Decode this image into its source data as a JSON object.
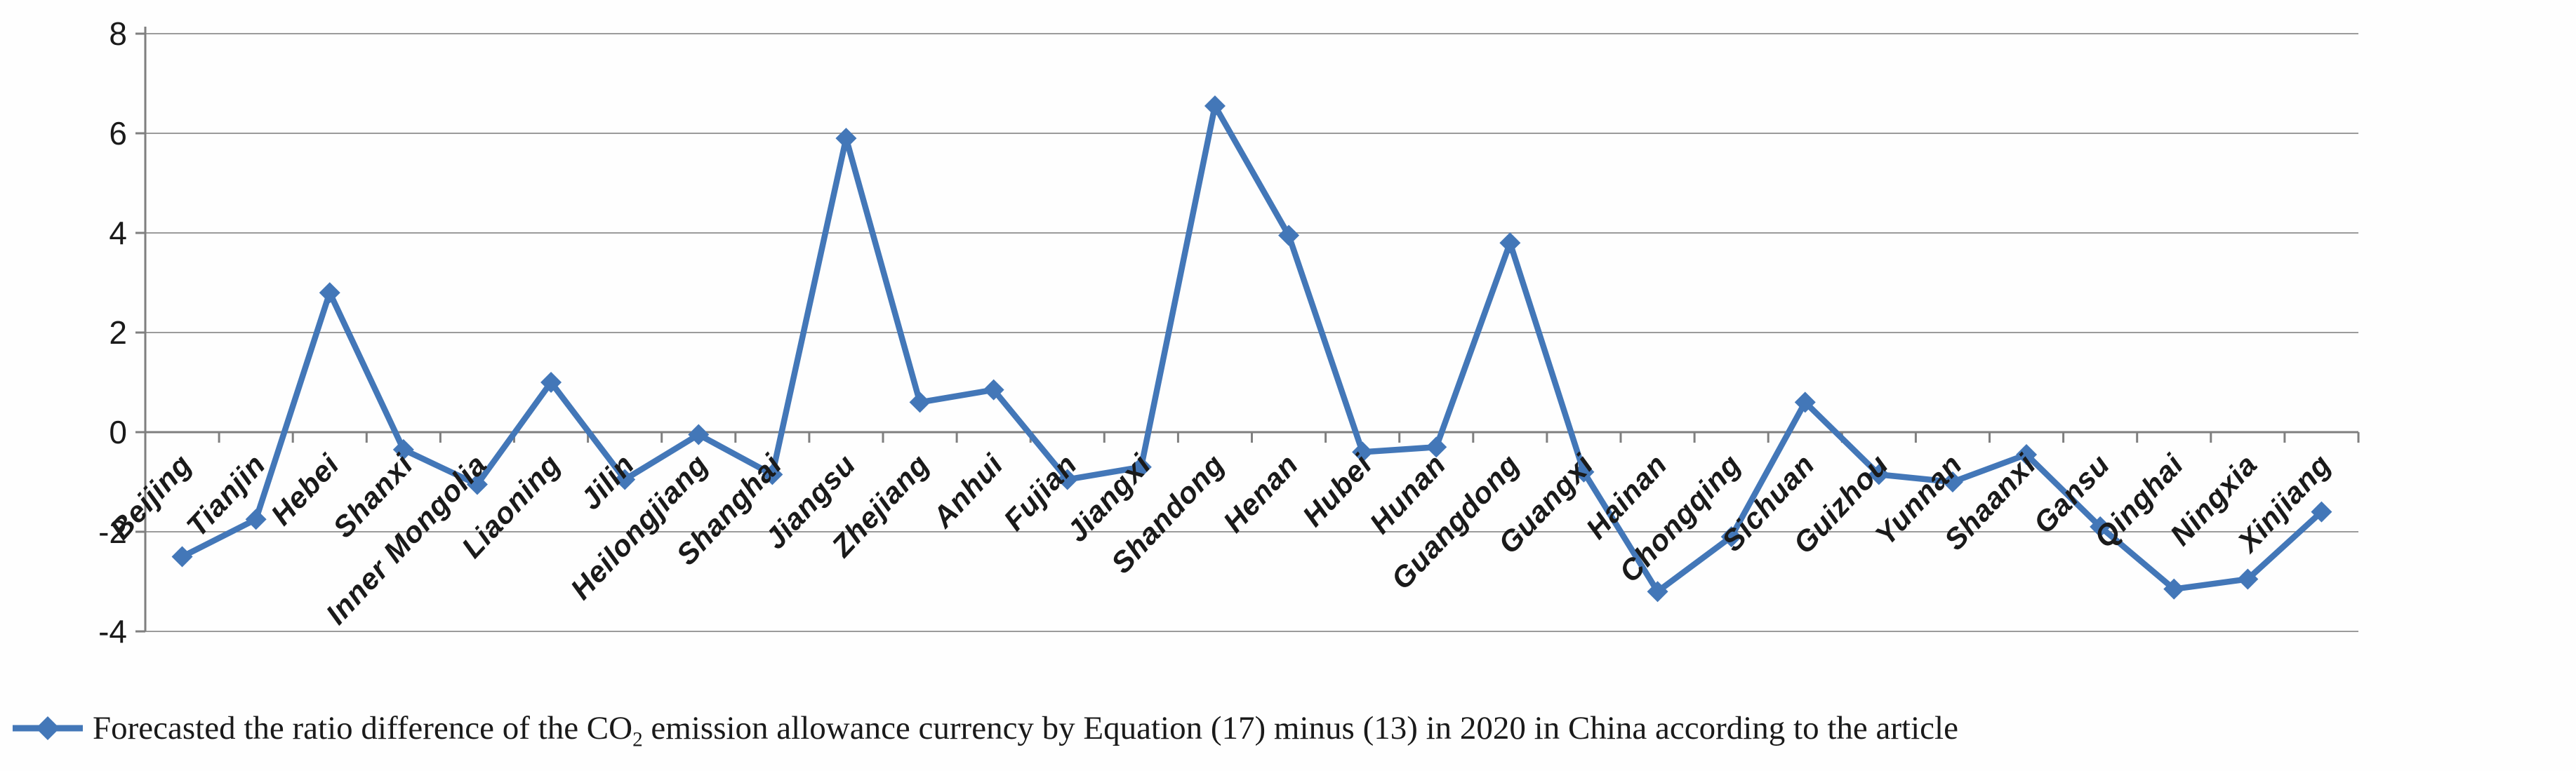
{
  "chart_data": {
    "type": "line",
    "title": "",
    "xlabel": "",
    "ylabel": "",
    "categories": [
      "Beijing",
      "Tianjin",
      "Hebei",
      "Shanxi",
      "Inner Mongolia",
      "Liaoning",
      "Jilin",
      "Heilongjiang",
      "Shanghai",
      "Jiangsu",
      "Zhejiang",
      "Anhui",
      "Fujian",
      "Jiangxi",
      "Shandong",
      "Henan",
      "Hubei",
      "Hunan",
      "Guangdong",
      "Guangxi",
      "Hainan",
      "Chongqing",
      "Sichuan",
      "Guizhou",
      "Yunnan",
      "Shaanxi",
      "Gansu",
      "Qinghai",
      "Ningxia",
      "Xinjiang"
    ],
    "series": [
      {
        "name": "Forecasted the ratio difference of the CO2 emission allowance currency by Equation (17) minus (13) in 2020 in China according to the article",
        "values": [
          -2.5,
          -1.75,
          2.8,
          -0.35,
          -1.05,
          1.0,
          -0.95,
          -0.05,
          -0.85,
          5.9,
          0.6,
          0.85,
          -0.95,
          -0.7,
          6.55,
          3.95,
          -0.4,
          -0.3,
          3.8,
          -0.8,
          -3.2,
          -2.1,
          0.6,
          -0.85,
          -1.0,
          -0.45,
          -1.9,
          -3.15,
          -2.95,
          -1.6
        ]
      }
    ],
    "ylim": [
      -4,
      8
    ],
    "yticks": [
      8,
      6,
      4,
      2,
      0,
      -2,
      -4
    ],
    "grid": true,
    "legend_position": "bottom-left",
    "marker": "diamond",
    "line_color": "#4377b8",
    "gridline_color": "#9b9b9b",
    "axis_color": "#7f7f7f",
    "text_color": "#1a1a1a"
  },
  "legend": {
    "text_before_sub": "Forecasted the ratio difference of the CO",
    "sub": "2",
    "text_after_sub": " emission allowance currency by Equation (17) minus (13) in 2020 in China according to the article"
  }
}
